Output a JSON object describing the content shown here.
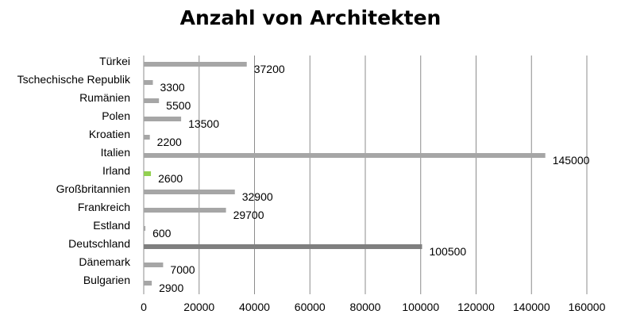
{
  "chart_data": {
    "type": "bar",
    "orientation": "horizontal",
    "title": "Anzahl von Architekten",
    "categories": [
      "Türkei",
      "Tschechische Republik",
      "Rumänien",
      "Polen",
      "Kroatien",
      "Italien",
      "Irland",
      "Großbritannien",
      "Frankreich",
      "Estland",
      "Deutschland",
      "Dänemark",
      "Bulgarien"
    ],
    "values": [
      37200,
      3300,
      5500,
      13500,
      2200,
      145000,
      2600,
      32900,
      29700,
      600,
      100500,
      7000,
      2900
    ],
    "value_labels": [
      "37200",
      "3300",
      "5500",
      "13500",
      "2200",
      "145000",
      "2600",
      "32900",
      "29700",
      "600",
      "100500",
      "7000",
      "2900"
    ],
    "bar_colors": [
      "#a6a6a6",
      "#a6a6a6",
      "#a6a6a6",
      "#a6a6a6",
      "#a6a6a6",
      "#a6a6a6",
      "#92d050",
      "#a6a6a6",
      "#a6a6a6",
      "#a6a6a6",
      "#7f7f7f",
      "#a6a6a6",
      "#a6a6a6"
    ],
    "xlim": [
      0,
      160000
    ],
    "x_ticks": [
      "0",
      "20000",
      "40000",
      "60000",
      "80000",
      "100000",
      "120000",
      "140000",
      "160000"
    ],
    "grid": "vertical",
    "gridline_color": "#8c8c8c",
    "xlabel": "",
    "ylabel": ""
  }
}
